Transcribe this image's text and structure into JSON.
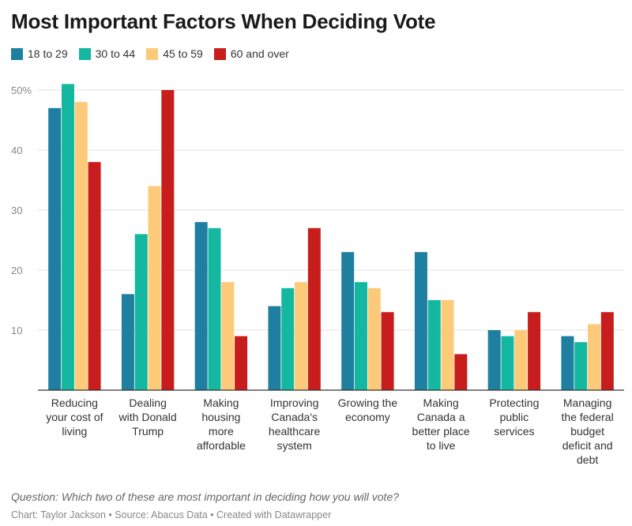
{
  "title": "Most Important Factors When Deciding Vote",
  "question": "Question: Which two of these are most important in deciding how you will vote?",
  "footer": "Chart: Taylor Jackson • Source: Abacus Data • Created with Datawrapper",
  "chart_data": {
    "type": "bar",
    "categories": [
      [
        "Reducing",
        "your cost of",
        "living"
      ],
      [
        "Dealing",
        "with Donald",
        "Trump"
      ],
      [
        "Making",
        "housing",
        "more",
        "affordable"
      ],
      [
        "Improving",
        "Canada's",
        "healthcare",
        "system"
      ],
      [
        "Growing the",
        "economy"
      ],
      [
        "Making",
        "Canada a",
        "better place",
        "to live"
      ],
      [
        "Protecting",
        "public",
        "services"
      ],
      [
        "Managing",
        "the federal",
        "budget",
        "deficit and",
        "debt"
      ]
    ],
    "series": [
      {
        "name": "18 to 29",
        "color": "#1f7fa0",
        "values": [
          47,
          16,
          28,
          14,
          23,
          23,
          10,
          9
        ]
      },
      {
        "name": "30 to 44",
        "color": "#14b8a0",
        "values": [
          51,
          26,
          27,
          17,
          18,
          15,
          9,
          8
        ]
      },
      {
        "name": "45 to 59",
        "color": "#fdca7a",
        "values": [
          48,
          34,
          18,
          18,
          17,
          15,
          10,
          11
        ]
      },
      {
        "name": "60 and over",
        "color": "#c71e1d",
        "values": [
          38,
          50,
          9,
          27,
          13,
          6,
          13,
          13
        ]
      }
    ],
    "yticks": [
      {
        "value": 10,
        "label": "10"
      },
      {
        "value": 20,
        "label": "20"
      },
      {
        "value": 30,
        "label": "30"
      },
      {
        "value": 40,
        "label": "40"
      },
      {
        "value": 50,
        "label": "50%"
      }
    ],
    "ylim": [
      0,
      51
    ],
    "grid": true,
    "legend_position": "top-left"
  }
}
